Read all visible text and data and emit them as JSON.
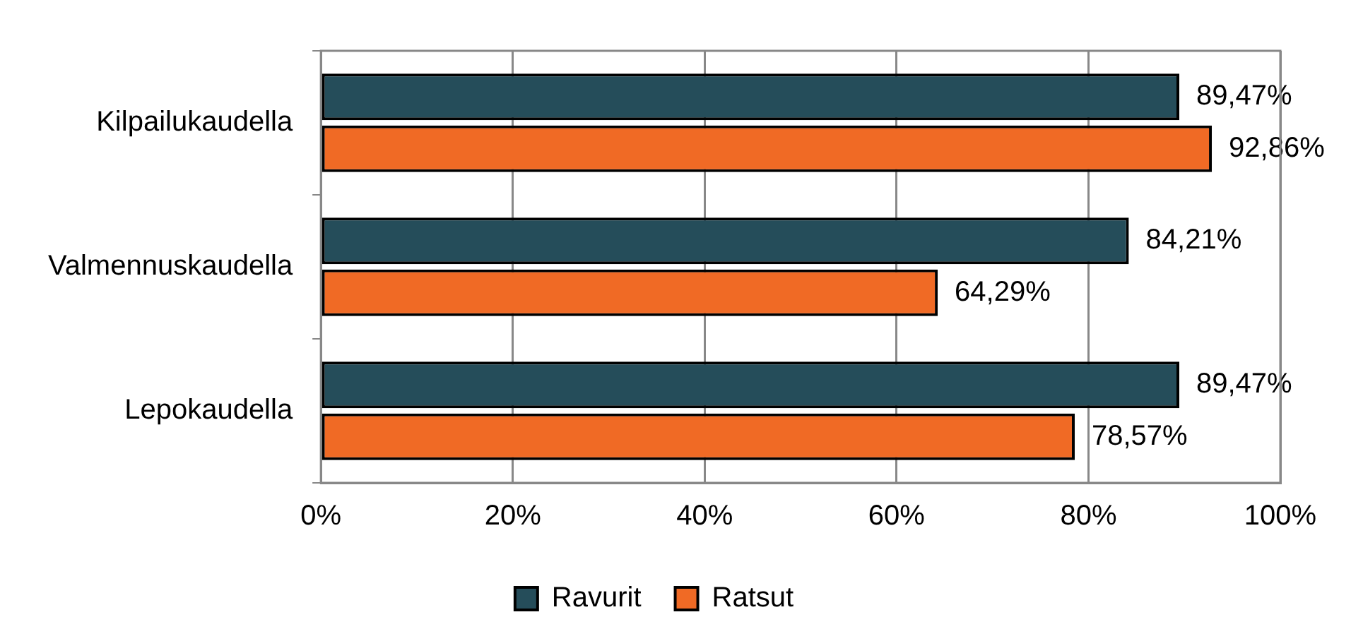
{
  "chart_data": {
    "type": "bar",
    "orientation": "horizontal",
    "categories": [
      "Kilpailukaudella",
      "Valmennuskaudella",
      "Lepokaudella"
    ],
    "series": [
      {
        "name": "Ravurit",
        "color": "#254d5a",
        "values": [
          89.47,
          84.21,
          89.47
        ],
        "value_labels": [
          "89,47%",
          "84,21%",
          "89,47%"
        ]
      },
      {
        "name": "Ratsut",
        "color": "#f06a25",
        "values": [
          92.86,
          64.29,
          78.57
        ],
        "value_labels": [
          "92,86%",
          "64,29%",
          "78,57%"
        ]
      }
    ],
    "xlim": [
      0,
      100
    ],
    "xticks": [
      {
        "value": 0,
        "label": "0%"
      },
      {
        "value": 20,
        "label": "20%"
      },
      {
        "value": 40,
        "label": "40%"
      },
      {
        "value": 60,
        "label": "60%"
      },
      {
        "value": 80,
        "label": "80%"
      },
      {
        "value": 100,
        "label": "100%"
      }
    ],
    "grid": "x",
    "legend": "bottom"
  }
}
